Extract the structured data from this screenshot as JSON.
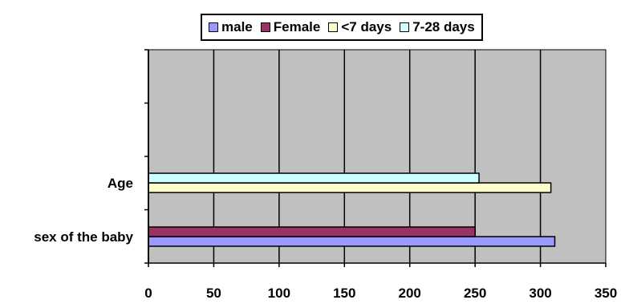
{
  "chart_data": {
    "type": "bar",
    "orientation": "horizontal",
    "categories": [
      "sex of the baby",
      "Age"
    ],
    "series": [
      {
        "name": "male",
        "color": "#9999FF",
        "values": [
          311,
          null
        ]
      },
      {
        "name": "Female",
        "color": "#993366",
        "values": [
          250,
          null
        ]
      },
      {
        "name": "<7 days",
        "color": "#FFFFCC",
        "values": [
          null,
          308
        ]
      },
      {
        "name": "7-28 days",
        "color": "#CCFFFF",
        "values": [
          null,
          253
        ]
      }
    ],
    "xlim": [
      0,
      350
    ],
    "xticks": [
      "0",
      "50",
      "100",
      "150",
      "200",
      "250",
      "300",
      "350"
    ],
    "grid": true,
    "legend_position": "top",
    "plot_background": "#C0C0C0"
  }
}
